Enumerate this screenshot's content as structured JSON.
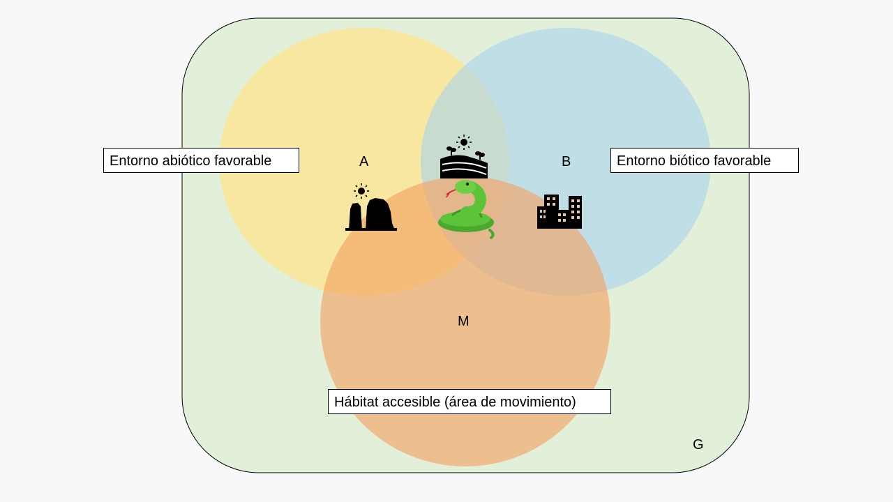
{
  "diagram": {
    "labels": {
      "abiotic": "A",
      "biotic": "B",
      "movement": "M",
      "geographic": "G"
    },
    "callouts": {
      "abiotic": "Entorno abiótico favorable",
      "biotic": "Entorno biótico favorable",
      "movement": "Hábitat accesible (área de movimiento)"
    },
    "icons": {
      "abiotic": "rock-formation-sun-icon",
      "biotic": "city-buildings-icon",
      "intersection": "farmland-sun-icon",
      "species": "snake-icon"
    },
    "colors": {
      "background": "#f8f8f8",
      "region_g": "#e2efd9",
      "circle_a": "#ffe38a",
      "circle_b": "#a9d3ec",
      "circle_m": "#f4a261",
      "icon": "#000000",
      "snake": "#5cc43a"
    }
  }
}
